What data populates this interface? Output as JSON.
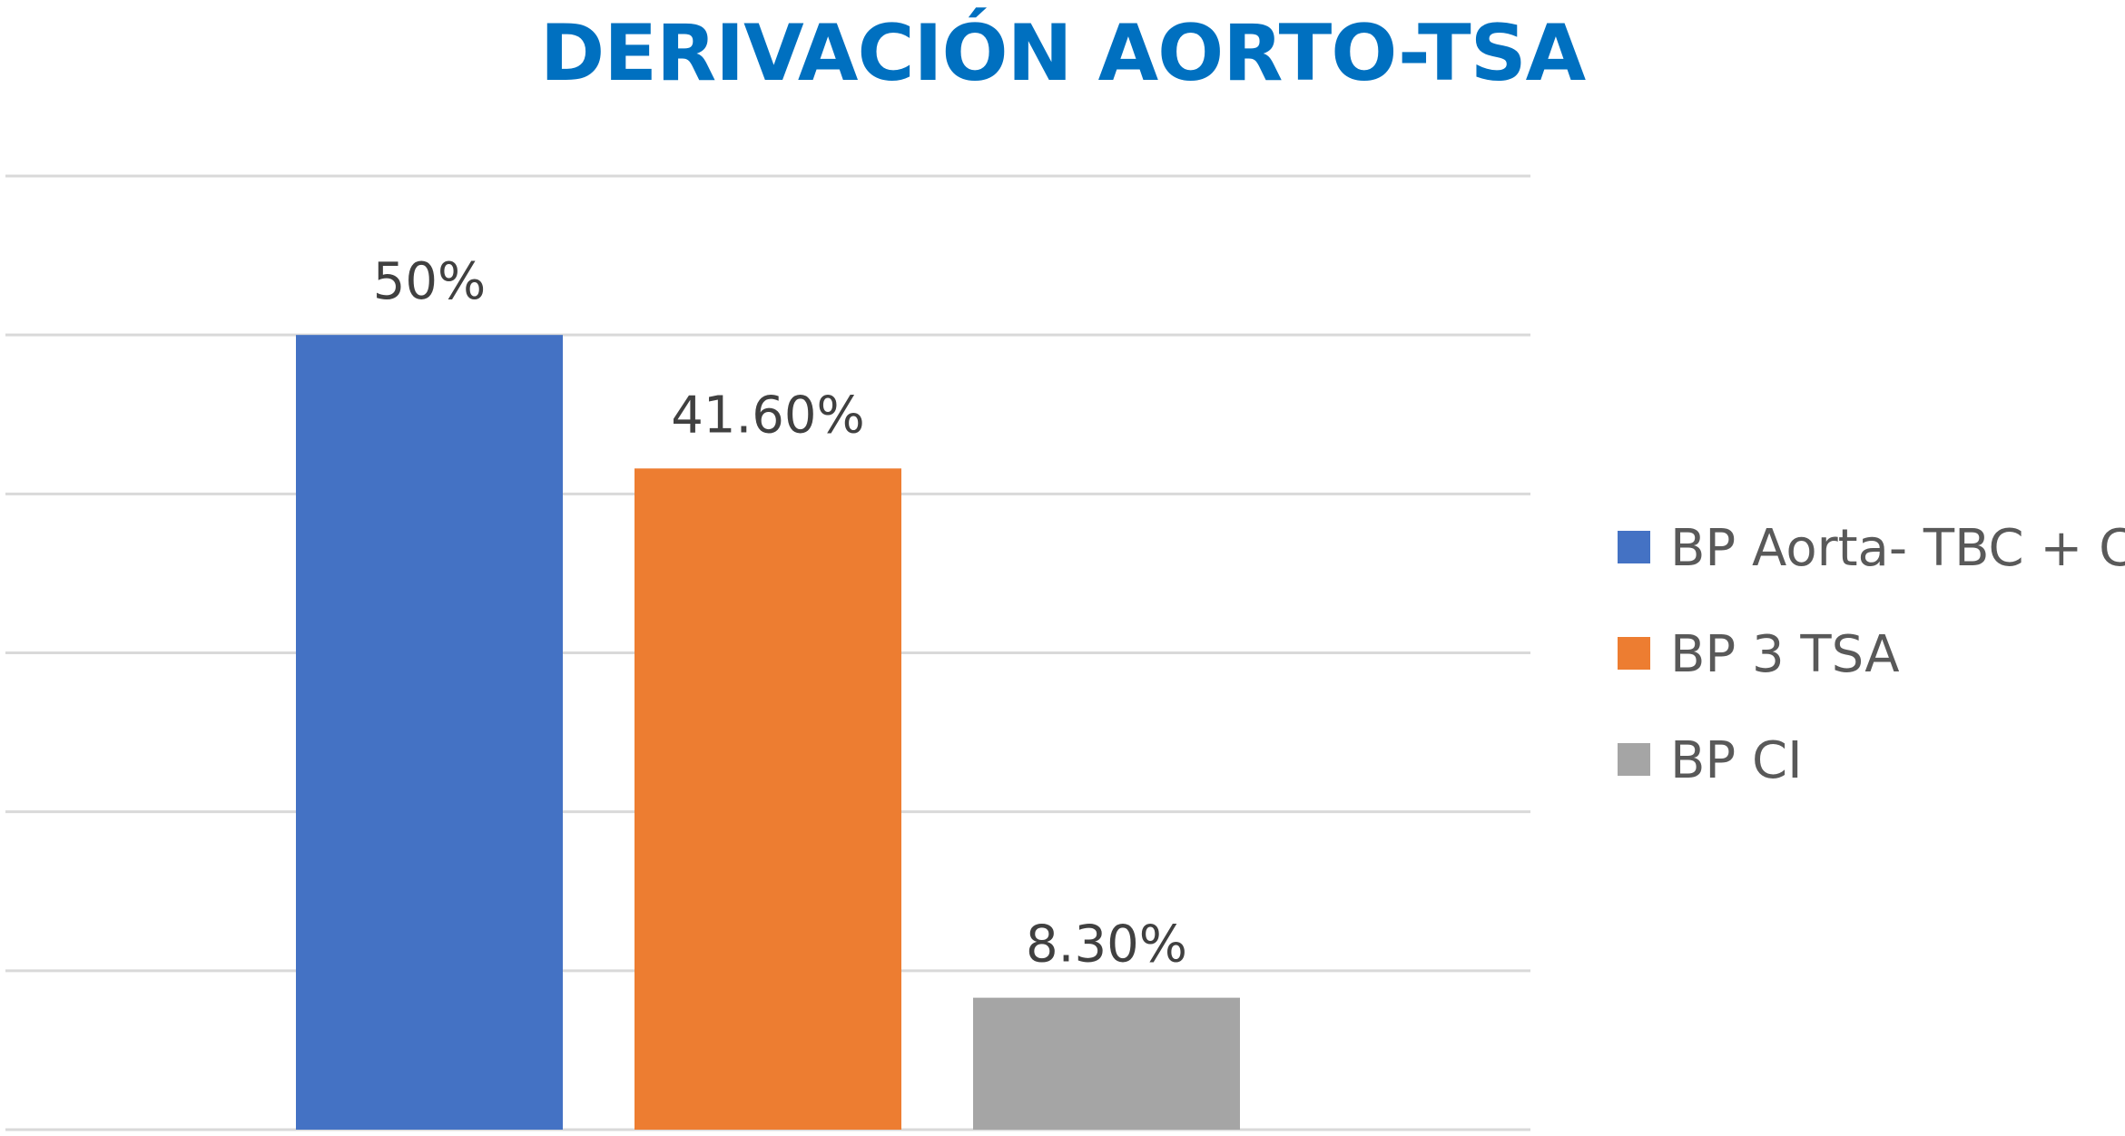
{
  "chart_data": {
    "type": "bar",
    "title": "DERIVACIÓN AORTO-TSA",
    "title_color": "#0070C0",
    "categories": [
      "BP Aorta- TBC + CI",
      "BP 3 TSA",
      "BP CI"
    ],
    "values": [
      50,
      41.6,
      8.3
    ],
    "value_labels": [
      "50%",
      "41.60%",
      "8.30%"
    ],
    "series": [
      {
        "name": "BP Aorta- TBC + CI",
        "value": 50,
        "label": "50%",
        "color": "#4472C4"
      },
      {
        "name": "BP 3 TSA",
        "value": 41.6,
        "label": "41.60%",
        "color": "#ED7D31"
      },
      {
        "name": "BP CI",
        "value": 8.3,
        "label": "8.30%",
        "color": "#A5A5A5"
      }
    ],
    "ylim": [
      0,
      60
    ],
    "yticks": [
      0,
      10,
      20,
      30,
      40,
      50,
      60
    ],
    "grid": true,
    "grid_color": "#D9D9D9",
    "legend_position": "right",
    "xlabel": "",
    "ylabel": ""
  }
}
